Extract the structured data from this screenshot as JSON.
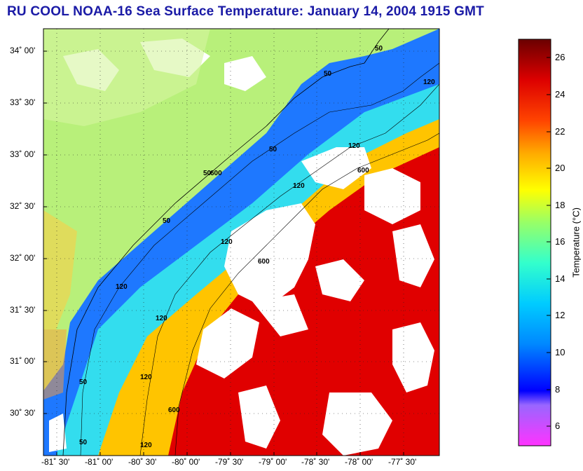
{
  "title": "RU COOL  NOAA-16  Sea Surface Temperature:  January 14, 2004 1915 GMT",
  "latitude_labels": [
    "34˚ 00'",
    "33˚ 30'",
    "33˚ 00'",
    "32˚ 30'",
    "32˚ 00'",
    "31˚ 30'",
    "31˚ 00'",
    "30˚ 30'"
  ],
  "longitude_labels": [
    "-81˚ 30'",
    "-81˚ 00'",
    "-80˚ 30'",
    "-80˚ 00'",
    "-79˚ 30'",
    "-79˚ 00'",
    "-78˚ 30'",
    "-78˚ 00'",
    "-77˚ 30'"
  ],
  "contour_labels": [
    "50",
    "50",
    "50",
    "50",
    "50",
    "50",
    "120",
    "120",
    "120",
    "120",
    "600",
    "600",
    "600",
    "120",
    "120",
    "120",
    "600",
    "120",
    "50"
  ],
  "colorbar": {
    "label": "Temperature (°C)",
    "ticks": [
      "26",
      "24",
      "22",
      "20",
      "18",
      "16",
      "14",
      "12",
      "10",
      "8",
      "6"
    ],
    "min": 5,
    "max": 27
  }
}
